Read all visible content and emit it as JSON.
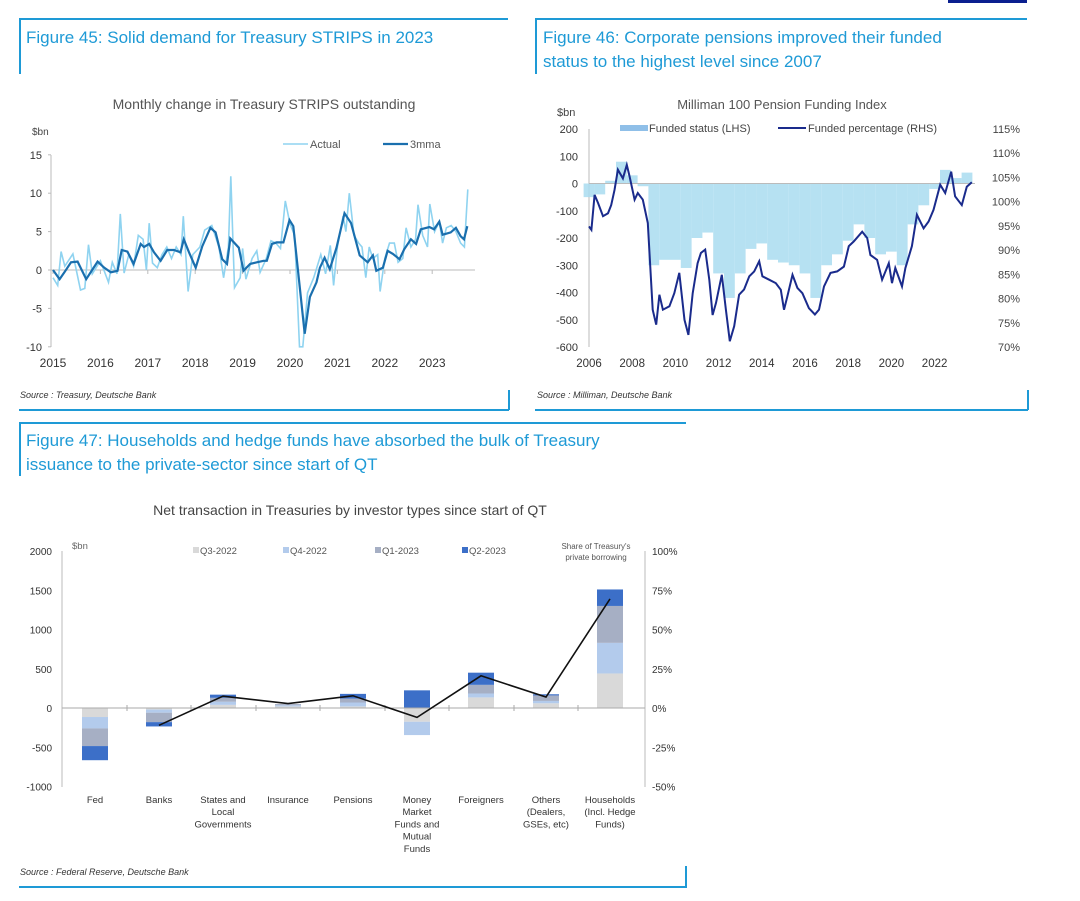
{
  "fig45": {
    "title": "Figure 45: Solid demand for Treasury STRIPS in 2023",
    "source": "Source : Treasury, Deutsche Bank"
  },
  "fig46": {
    "title_line1": "Figure 46: Corporate pensions improved their funded",
    "title_line2": "status to the highest level since 2007",
    "source": "Source : Milliman, Deutsche Bank"
  },
  "fig47": {
    "title_line1": "Figure 47: Households and hedge funds have absorbed the bulk of Treasury",
    "title_line2": "issuance to the private-sector since start of QT",
    "source": "Source : Federal Reserve, Deutsche Bank"
  },
  "colors": {
    "accent": "#1e9ad6",
    "header_bar": "#0a1f8f"
  },
  "chart_data": [
    {
      "type": "line",
      "title": "Monthly change in Treasury STRIPS outstanding",
      "ylabel": "$bn",
      "ylim": [
        -10,
        15
      ],
      "yticks": [
        "15",
        "10",
        "5",
        "0",
        "-5",
        "-10"
      ],
      "ytick_values": [
        15,
        10,
        5,
        0,
        -5,
        -10
      ],
      "xticks": [
        "2015",
        "2016",
        "2017",
        "2018",
        "2019",
        "2020",
        "2021",
        "2022",
        "2023"
      ],
      "xlim": [
        2015,
        2023.85
      ],
      "legend": "top-right",
      "series": [
        {
          "name": "Actual",
          "color": "#8fd3f0",
          "x": [
            2015.0,
            2015.1,
            2015.17,
            2015.25,
            2015.42,
            2015.58,
            2015.67,
            2015.75,
            2015.83,
            2016.0,
            2016.17,
            2016.25,
            2016.35,
            2016.42,
            2016.5,
            2016.6,
            2016.7,
            2016.8,
            2016.9,
            2016.97,
            2017.03,
            2017.1,
            2017.2,
            2017.3,
            2017.4,
            2017.5,
            2017.6,
            2017.7,
            2017.75,
            2017.85,
            2017.95,
            2018.1,
            2018.2,
            2018.35,
            2018.5,
            2018.6,
            2018.7,
            2018.75,
            2018.83,
            2018.95,
            2019.0,
            2019.07,
            2019.2,
            2019.3,
            2019.37,
            2019.5,
            2019.6,
            2019.7,
            2019.8,
            2019.9,
            2020.0,
            2020.1,
            2020.2,
            2020.27,
            2020.37,
            2020.5,
            2020.65,
            2020.75,
            2020.85,
            2020.92,
            2021.0,
            2021.12,
            2021.18,
            2021.25,
            2021.35,
            2021.45,
            2021.52,
            2021.6,
            2021.67,
            2021.75,
            2021.85,
            2021.9,
            2022.0,
            2022.1,
            2022.2,
            2022.28,
            2022.38,
            2022.45,
            2022.55,
            2022.65,
            2022.7,
            2022.8,
            2022.9,
            2022.95,
            2023.05,
            2023.15,
            2023.22,
            2023.3,
            2023.4,
            2023.5,
            2023.6,
            2023.68,
            2023.75
          ],
          "y": [
            -1,
            -2,
            2.4,
            0.5,
            2.1,
            -2.6,
            -2.4,
            3.3,
            -0.5,
            1.2,
            -1.6,
            1.0,
            -0.5,
            7.3,
            -0.4,
            2.0,
            0.5,
            4.5,
            4.0,
            0.0,
            6.1,
            0.9,
            0.3,
            2.0,
            3.0,
            1.5,
            3.0,
            2.0,
            7.0,
            -2.8,
            2.0,
            3.0,
            5.2,
            5.8,
            3.0,
            -1.0,
            3.0,
            12.2,
            -2.3,
            -1.0,
            2.8,
            -1.2,
            1.5,
            2.5,
            -0.3,
            1.5,
            3.8,
            3.5,
            2.8,
            9.0,
            6.0,
            4.5,
            -10,
            -10,
            -3.0,
            -1.0,
            2.0,
            -0.5,
            3.2,
            -2.0,
            3.0,
            7.0,
            5.0,
            10.0,
            4.5,
            3.5,
            3.0,
            -1.0,
            3.0,
            1.5,
            2.0,
            -2.8,
            1.5,
            3.5,
            3.5,
            1.0,
            1.5,
            5.5,
            3.0,
            4.0,
            8.5,
            4.5,
            3.0,
            8.6,
            5.0,
            6.3,
            3.5,
            5.5,
            5.8,
            5.0,
            3.5,
            3.0,
            10.5
          ]
        },
        {
          "name": "3mma",
          "color": "#1a6fae",
          "x": [
            2015.0,
            2015.14,
            2015.24,
            2015.38,
            2015.52,
            2015.7,
            2015.94,
            2016.08,
            2016.22,
            2016.36,
            2016.45,
            2016.57,
            2016.7,
            2016.85,
            2016.92,
            2017.03,
            2017.13,
            2017.27,
            2017.41,
            2017.55,
            2017.69,
            2017.76,
            2017.87,
            2018.01,
            2018.15,
            2018.32,
            2018.43,
            2018.57,
            2018.67,
            2018.74,
            2018.92,
            2019.02,
            2019.16,
            2019.3,
            2019.44,
            2019.51,
            2019.62,
            2019.72,
            2019.86,
            2019.99,
            2020.07,
            2020.31,
            2020.42,
            2020.56,
            2020.63,
            2020.73,
            2020.84,
            2020.98,
            2021.15,
            2021.29,
            2021.47,
            2021.64,
            2021.75,
            2021.82,
            2021.96,
            2022.06,
            2022.17,
            2022.31,
            2022.41,
            2022.55,
            2022.66,
            2022.76,
            2022.94,
            2023.04,
            2023.15,
            2023.22,
            2023.39,
            2023.5,
            2023.6,
            2023.67,
            2023.74
          ],
          "y": [
            0,
            -1.2,
            -0.3,
            1.0,
            1.1,
            -1.2,
            1.1,
            0.3,
            -0.3,
            -0.1,
            2.6,
            2.4,
            0.8,
            3.4,
            3.0,
            3.4,
            2.3,
            1.2,
            2.6,
            2.6,
            2.3,
            4.0,
            2.3,
            0.3,
            3.1,
            5.5,
            4.9,
            1.4,
            0.8,
            4.1,
            2.9,
            -0.1,
            0.8,
            1.0,
            1.2,
            1.2,
            3.4,
            3.6,
            3.6,
            6.5,
            5.7,
            -8.3,
            -3.5,
            -1.6,
            0.3,
            1.6,
            0.1,
            2.9,
            7.4,
            6.1,
            1.9,
            1.0,
            1.9,
            -0.1,
            0.3,
            2.5,
            2.1,
            1.4,
            2.7,
            4.0,
            3.4,
            5.3,
            5.6,
            5.3,
            6.3,
            4.6,
            4.9,
            5.5,
            4.4,
            4.0,
            5.7
          ]
        }
      ]
    },
    {
      "type": "bar+line",
      "title": "Milliman 100 Pension Funding Index",
      "ylabel": "$bn",
      "ylim": [
        -600,
        200
      ],
      "yticks": [
        "200",
        "100",
        "0",
        "-100",
        "-200",
        "-300",
        "-400",
        "-500",
        "-600"
      ],
      "ytick_values": [
        200,
        100,
        0,
        -100,
        -200,
        -300,
        -400,
        -500,
        -600
      ],
      "y2lim": [
        70,
        115
      ],
      "y2ticks": [
        "115%",
        "110%",
        "105%",
        "100%",
        "95%",
        "90%",
        "85%",
        "80%",
        "75%",
        "70%"
      ],
      "y2tick_values": [
        115,
        110,
        105,
        100,
        95,
        90,
        85,
        80,
        75,
        70
      ],
      "xticks": [
        "2006",
        "2008",
        "2010",
        "2012",
        "2014",
        "2016",
        "2018",
        "2020",
        "2022"
      ],
      "xtick_values": [
        2006,
        2008,
        2010,
        2012,
        2014,
        2016,
        2018,
        2020,
        2022
      ],
      "xlim": [
        2006,
        2024
      ],
      "legend": "top",
      "series": [
        {
          "name": "Funded status (LHS)",
          "type": "bar",
          "color": "#a9dcf0",
          "x": [
            2006.0,
            2006.5,
            2007.0,
            2007.5,
            2008.0,
            2008.5,
            2009.0,
            2009.5,
            2010.0,
            2010.5,
            2011.0,
            2011.5,
            2012.0,
            2012.5,
            2013.0,
            2013.5,
            2014.0,
            2014.5,
            2015.0,
            2015.5,
            2016.0,
            2016.5,
            2017.0,
            2017.5,
            2018.0,
            2018.5,
            2019.0,
            2019.5,
            2020.0,
            2020.5,
            2021.0,
            2021.5,
            2022.0,
            2022.5,
            2023.0,
            2023.5
          ],
          "y": [
            -50,
            -40,
            10,
            80,
            30,
            -10,
            -300,
            -280,
            -280,
            -310,
            -200,
            -180,
            -330,
            -420,
            -330,
            -240,
            -220,
            -280,
            -290,
            -300,
            -330,
            -420,
            -300,
            -260,
            -210,
            -150,
            -200,
            -260,
            -250,
            -300,
            -150,
            -80,
            -20,
            50,
            20,
            40
          ]
        },
        {
          "name": "Funded percentage (RHS)",
          "type": "line",
          "axis": "right",
          "color": "#1a2b8c",
          "x": [
            2006.0,
            2006.11,
            2006.26,
            2006.42,
            2006.65,
            2006.88,
            2007.03,
            2007.18,
            2007.34,
            2007.57,
            2007.75,
            2007.88,
            2008.11,
            2008.26,
            2008.49,
            2008.72,
            2008.95,
            2009.11,
            2009.26,
            2009.42,
            2009.72,
            2009.95,
            2010.18,
            2010.42,
            2010.6,
            2010.8,
            2011.03,
            2011.18,
            2011.38,
            2011.57,
            2011.72,
            2011.88,
            2012.15,
            2012.34,
            2012.52,
            2012.72,
            2012.95,
            2013.18,
            2013.42,
            2013.65,
            2013.88,
            2014.03,
            2014.34,
            2014.65,
            2014.88,
            2015.03,
            2015.18,
            2015.42,
            2015.65,
            2015.88,
            2016.18,
            2016.46,
            2016.65,
            2016.88,
            2017.18,
            2017.49,
            2017.8,
            2018.03,
            2018.26,
            2018.65,
            2018.88,
            2019.03,
            2019.34,
            2019.57,
            2019.88,
            2020.03,
            2020.18,
            2020.49,
            2020.65,
            2020.95,
            2021.18,
            2021.49,
            2021.72,
            2021.95,
            2022.26,
            2022.49,
            2022.77,
            2022.95,
            2023.26,
            2023.49,
            2023.72
          ],
          "y": [
            94.9,
            94.2,
            101.4,
            99.7,
            97.0,
            97.6,
            99.3,
            102.4,
            106.6,
            104.8,
            107.6,
            105.2,
            100.4,
            101.8,
            100.4,
            95.6,
            77.7,
            74.6,
            80.8,
            77.7,
            78.4,
            81.1,
            85.3,
            75.6,
            72.5,
            81.1,
            87.3,
            89.4,
            90.1,
            83.9,
            76.6,
            79.1,
            84.9,
            77.7,
            71.2,
            74.3,
            80.8,
            81.9,
            84.6,
            85.6,
            87.7,
            84.6,
            83.9,
            83.2,
            81.8,
            77.7,
            80.4,
            84.9,
            82.2,
            81.1,
            78.0,
            76.7,
            77.7,
            82.5,
            85.3,
            85.6,
            86.6,
            90.8,
            91.8,
            93.8,
            92.5,
            89.0,
            88.0,
            83.9,
            87.3,
            83.2,
            86.3,
            82.5,
            86.3,
            90.8,
            97.3,
            94.5,
            95.9,
            98.3,
            103.5,
            101.8,
            106.2,
            101.1,
            99.3,
            103.1,
            104.0
          ]
        }
      ]
    },
    {
      "type": "stacked-bar+line",
      "title": "Net transaction in Treasuries by investor types since start of QT",
      "ylabel": "$bn",
      "ylim": [
        -1000,
        2000
      ],
      "yticks": [
        "2000",
        "1500",
        "1000",
        "500",
        "0",
        "-500",
        "-1000"
      ],
      "ytick_values": [
        2000,
        1500,
        1000,
        500,
        0,
        -500,
        -1000
      ],
      "y2label": "Share of Treasury's private borrowing",
      "y2label_line1": "Share of Treasury's",
      "y2label_line2": "private borrowing",
      "y2lim": [
        -50,
        100
      ],
      "y2ticks": [
        "100%",
        "75%",
        "50%",
        "25%",
        "0%",
        "-25%",
        "-50%"
      ],
      "y2tick_values": [
        100,
        75,
        50,
        25,
        0,
        -25,
        -50
      ],
      "legend": "top",
      "categories": [
        [
          "Fed"
        ],
        [
          "Banks"
        ],
        [
          "States and",
          "Local",
          "Governments"
        ],
        [
          "Insurance"
        ],
        [
          "Pensions"
        ],
        [
          "Money",
          "Market",
          "Funds and",
          "Mutual",
          "Funds"
        ],
        [
          "Foreigners"
        ],
        [
          "Others",
          "(Dealers,",
          "GSEs, etc)"
        ],
        [
          "Households",
          "(Incl. Hedge",
          "Funds)"
        ]
      ],
      "series": [
        {
          "name": "Q3-2022",
          "color": "#d9d9d9",
          "values": [
            -115,
            -20,
            40,
            20,
            20,
            -175,
            135,
            60,
            440
          ]
        },
        {
          "name": "Q4-2022",
          "color": "#b3cbec",
          "values": [
            -145,
            -40,
            40,
            15,
            50,
            -170,
            50,
            30,
            390
          ]
        },
        {
          "name": "Q1-2023",
          "color": "#a6afc4",
          "values": [
            -225,
            -120,
            50,
            15,
            50,
            0,
            110,
            70,
            470
          ]
        },
        {
          "name": "Q2-2023",
          "color": "#3c6fc8",
          "values": [
            -180,
            -55,
            40,
            0,
            60,
            225,
            155,
            15,
            210
          ]
        },
        {
          "name": "Share of Treasury's private borrowing",
          "type": "line",
          "axis": "right",
          "color": "#111111",
          "values": [
            null,
            -11,
            7.5,
            2.8,
            7.8,
            -6,
            20.5,
            7,
            69.5
          ]
        }
      ]
    }
  ]
}
